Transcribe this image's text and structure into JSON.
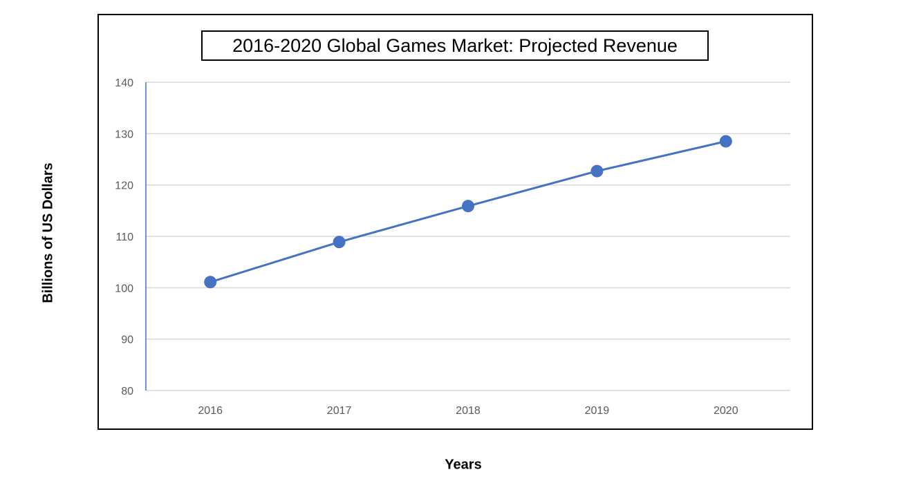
{
  "chart_data": {
    "type": "line",
    "title": "2016-2020 Global Games Market: Projected Revenue",
    "xlabel": "Years",
    "ylabel": "Billions of US Dollars",
    "categories": [
      "2016",
      "2017",
      "2018",
      "2019",
      "2020"
    ],
    "values": [
      101.1,
      108.9,
      115.9,
      122.7,
      128.5
    ],
    "ylim": [
      80,
      140
    ],
    "yticks": [
      80,
      90,
      100,
      110,
      120,
      130,
      140
    ],
    "grid": true,
    "legend": "none",
    "color": "#4472C4"
  }
}
